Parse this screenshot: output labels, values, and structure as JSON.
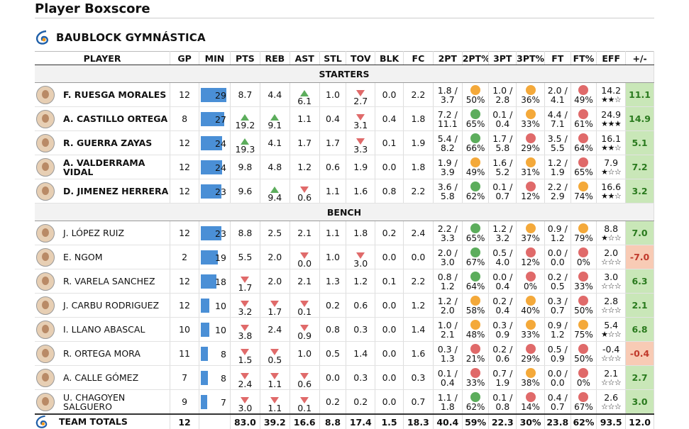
{
  "title": "Player Boxscore",
  "team": "BAUBLOCK GYMNÁSTICA",
  "headers": [
    "PLAYER",
    "GP",
    "MIN",
    "PTS",
    "REB",
    "AST",
    "STL",
    "TOV",
    "BLK",
    "FC",
    "2PT",
    "2PT%",
    "3PT",
    "3PT%",
    "FT",
    "FT%",
    "EFF",
    "+/-"
  ],
  "sections": [
    "STARTERS",
    "BENCH"
  ],
  "colors": {
    "green": "#5cad5c",
    "orange": "#f4a93a",
    "red": "#e06a6a",
    "bar": "#4a8fd6",
    "pos_bg": "#c9e7b8",
    "neg_bg": "#f8cbb5"
  },
  "starters": [
    {
      "name": "F. RUESGA MORALES",
      "gp": "12",
      "min": 29,
      "pts": "8.7",
      "reb": "4.4",
      "ast": "6.1",
      "ast_mark": "up",
      "stl": "1.0",
      "tov": "2.7",
      "tov_mark": "down",
      "blk": "0.0",
      "fc": "2.2",
      "pt2": "1.8 / 3.7",
      "pt2p": "50%",
      "pt2c": "orange",
      "pt3": "1.0 / 2.8",
      "pt3p": "36%",
      "pt3c": "orange",
      "ft": "2.0 / 4.1",
      "ftp": "49%",
      "ftc": "red",
      "eff": "14.2",
      "stars": "★★☆",
      "pm": "11.1",
      "pm_sign": "pos"
    },
    {
      "name": "A. CASTILLO ORTEGA",
      "gp": "8",
      "min": 27,
      "pts": "19.2",
      "pts_mark": "up",
      "reb": "9.1",
      "reb_mark": "up",
      "ast": "1.1",
      "stl": "0.4",
      "tov": "3.1",
      "tov_mark": "down",
      "blk": "0.4",
      "fc": "1.8",
      "pt2": "7.2 / 11.1",
      "pt2p": "65%",
      "pt2c": "green",
      "pt3": "0.1 / 0.4",
      "pt3p": "33%",
      "pt3c": "orange",
      "ft": "4.4 / 7.1",
      "ftp": "61%",
      "ftc": "red",
      "eff": "24.9",
      "stars": "★★★",
      "pm": "14.9",
      "pm_sign": "pos"
    },
    {
      "name": "R. GUERRA ZAYAS",
      "gp": "12",
      "min": 24,
      "pts": "19.3",
      "pts_mark": "up",
      "reb": "4.1",
      "ast": "1.7",
      "stl": "1.7",
      "tov": "3.3",
      "tov_mark": "down",
      "blk": "0.1",
      "fc": "1.9",
      "pt2": "5.4 / 8.2",
      "pt2p": "66%",
      "pt2c": "green",
      "pt3": "1.7 / 5.8",
      "pt3p": "29%",
      "pt3c": "red",
      "ft": "3.5 / 5.5",
      "ftp": "64%",
      "ftc": "red",
      "eff": "16.1",
      "stars": "★★☆",
      "pm": "5.1",
      "pm_sign": "pos"
    },
    {
      "name": "A. VALDERRAMA VIDAL",
      "gp": "12",
      "min": 24,
      "pts": "9.8",
      "reb": "4.8",
      "ast": "1.2",
      "stl": "0.6",
      "tov": "1.9",
      "blk": "0.0",
      "fc": "1.8",
      "pt2": "1.9 / 3.9",
      "pt2p": "49%",
      "pt2c": "orange",
      "pt3": "1.6 / 5.2",
      "pt3p": "31%",
      "pt3c": "orange",
      "ft": "1.2 / 1.9",
      "ftp": "65%",
      "ftc": "red",
      "eff": "7.9",
      "stars": "★☆☆",
      "pm": "7.2",
      "pm_sign": "pos"
    },
    {
      "name": "D. JIMENEZ HERRERA",
      "gp": "12",
      "min": 23,
      "pts": "9.6",
      "reb": "9.4",
      "reb_mark": "up",
      "ast": "0.6",
      "ast_mark": "down",
      "stl": "1.1",
      "tov": "1.6",
      "blk": "0.8",
      "fc": "2.2",
      "pt2": "3.6 / 5.8",
      "pt2p": "62%",
      "pt2c": "green",
      "pt3": "0.1 / 0.7",
      "pt3p": "12%",
      "pt3c": "red",
      "ft": "2.2 / 2.9",
      "ftp": "74%",
      "ftc": "orange",
      "eff": "16.6",
      "stars": "★★☆",
      "pm": "3.2",
      "pm_sign": "pos"
    }
  ],
  "bench": [
    {
      "name": "J. LÓPEZ RUIZ",
      "gp": "12",
      "min": 23,
      "pts": "8.8",
      "reb": "2.5",
      "ast": "2.1",
      "stl": "1.1",
      "tov": "1.8",
      "blk": "0.2",
      "fc": "2.4",
      "pt2": "2.2 / 3.3",
      "pt2p": "65%",
      "pt2c": "green",
      "pt3": "1.2 / 3.2",
      "pt3p": "37%",
      "pt3c": "orange",
      "ft": "0.9 / 1.2",
      "ftp": "79%",
      "ftc": "orange",
      "eff": "8.8",
      "stars": "★☆☆",
      "pm": "7.0",
      "pm_sign": "pos"
    },
    {
      "name": "E. NGOM",
      "gp": "2",
      "min": 19,
      "pts": "5.5",
      "reb": "2.0",
      "ast": "0.0",
      "ast_mark": "down",
      "stl": "1.0",
      "tov": "3.0",
      "tov_mark": "down",
      "blk": "0.0",
      "fc": "0.0",
      "pt2": "2.0 / 3.0",
      "pt2p": "67%",
      "pt2c": "green",
      "pt3": "0.5 / 4.0",
      "pt3p": "12%",
      "pt3c": "red",
      "ft": "0.0 / 0.0",
      "ftp": "0%",
      "ftc": "red",
      "eff": "2.0",
      "stars": "☆☆☆",
      "pm": "-7.0",
      "pm_sign": "neg"
    },
    {
      "name": "R. VARELA SANCHEZ",
      "gp": "12",
      "min": 18,
      "pts": "1.7",
      "pts_mark": "down",
      "reb": "2.0",
      "ast": "2.1",
      "stl": "1.3",
      "tov": "1.2",
      "blk": "0.1",
      "fc": "2.2",
      "pt2": "0.8 / 1.2",
      "pt2p": "64%",
      "pt2c": "green",
      "pt3": "0.0 / 0.4",
      "pt3p": "0%",
      "pt3c": "red",
      "ft": "0.2 / 0.5",
      "ftp": "33%",
      "ftc": "red",
      "eff": "3.0",
      "stars": "☆☆☆",
      "pm": "6.3",
      "pm_sign": "pos"
    },
    {
      "name": "J. CARBU RODRIGUEZ",
      "gp": "12",
      "min": 10,
      "pts": "3.2",
      "pts_mark": "down",
      "reb": "1.7",
      "reb_mark": "down",
      "ast": "0.1",
      "ast_mark": "down",
      "stl": "0.2",
      "tov": "0.6",
      "blk": "0.0",
      "fc": "1.2",
      "pt2": "1.2 / 2.0",
      "pt2p": "58%",
      "pt2c": "orange",
      "pt3": "0.2 / 0.4",
      "pt3p": "40%",
      "pt3c": "orange",
      "ft": "0.3 / 0.7",
      "ftp": "50%",
      "ftc": "red",
      "eff": "2.8",
      "stars": "☆☆☆",
      "pm": "2.1",
      "pm_sign": "pos"
    },
    {
      "name": "I. LLANO ABASCAL",
      "gp": "10",
      "min": 10,
      "pts": "3.8",
      "pts_mark": "down",
      "reb": "2.4",
      "ast": "0.9",
      "ast_mark": "down",
      "stl": "0.8",
      "tov": "0.3",
      "blk": "0.0",
      "fc": "1.4",
      "pt2": "1.0 / 2.1",
      "pt2p": "48%",
      "pt2c": "orange",
      "pt3": "0.3 / 0.9",
      "pt3p": "33%",
      "pt3c": "orange",
      "ft": "0.9 / 1.2",
      "ftp": "75%",
      "ftc": "orange",
      "eff": "5.4",
      "stars": "★☆☆",
      "pm": "6.8",
      "pm_sign": "pos"
    },
    {
      "name": "R. ORTEGA MORA",
      "gp": "11",
      "min": 8,
      "pts": "1.5",
      "pts_mark": "down",
      "reb": "0.5",
      "reb_mark": "down",
      "ast": "1.0",
      "stl": "0.5",
      "tov": "1.4",
      "blk": "0.0",
      "fc": "1.6",
      "pt2": "0.3 / 1.3",
      "pt2p": "21%",
      "pt2c": "red",
      "pt3": "0.2 / 0.6",
      "pt3p": "29%",
      "pt3c": "red",
      "ft": "0.5 / 0.9",
      "ftp": "50%",
      "ftc": "red",
      "eff": "-0.4",
      "stars": "☆☆☆",
      "pm": "-0.4",
      "pm_sign": "neg"
    },
    {
      "name": "A. CALLE GÓMEZ",
      "gp": "7",
      "min": 8,
      "pts": "2.4",
      "pts_mark": "down",
      "reb": "1.1",
      "reb_mark": "down",
      "ast": "0.6",
      "ast_mark": "down",
      "stl": "0.0",
      "tov": "0.3",
      "blk": "0.0",
      "fc": "0.3",
      "pt2": "0.1 / 0.4",
      "pt2p": "33%",
      "pt2c": "red",
      "pt3": "0.7 / 1.9",
      "pt3p": "38%",
      "pt3c": "orange",
      "ft": "0.0 / 0.0",
      "ftp": "0%",
      "ftc": "red",
      "eff": "2.1",
      "stars": "☆☆☆",
      "pm": "2.7",
      "pm_sign": "pos"
    },
    {
      "name": "U. CHAGOYEN SALGUERO",
      "gp": "9",
      "min": 7,
      "pts": "3.0",
      "pts_mark": "down",
      "reb": "1.1",
      "reb_mark": "down",
      "ast": "0.1",
      "ast_mark": "down",
      "stl": "0.2",
      "tov": "0.2",
      "blk": "0.0",
      "fc": "0.7",
      "pt2": "1.1 / 1.8",
      "pt2p": "62%",
      "pt2c": "green",
      "pt3": "0.1 / 0.8",
      "pt3p": "14%",
      "pt3c": "red",
      "ft": "0.4 / 0.7",
      "ftp": "67%",
      "ftc": "red",
      "eff": "2.6",
      "stars": "☆☆☆",
      "pm": "3.0",
      "pm_sign": "pos"
    }
  ],
  "totals": {
    "label": "TEAM TOTALS",
    "gp": "12",
    "min": "",
    "pts": "83.0",
    "reb": "39.2",
    "ast": "16.6",
    "stl": "8.8",
    "tov": "17.4",
    "blk": "1.5",
    "fc": "18.3",
    "pt2": "40.4",
    "pt2p": "59%",
    "pt3": "22.3",
    "pt3p": "30%",
    "ft": "23.8",
    "ftp": "62%",
    "eff": "93.5",
    "pm": "12.0"
  }
}
